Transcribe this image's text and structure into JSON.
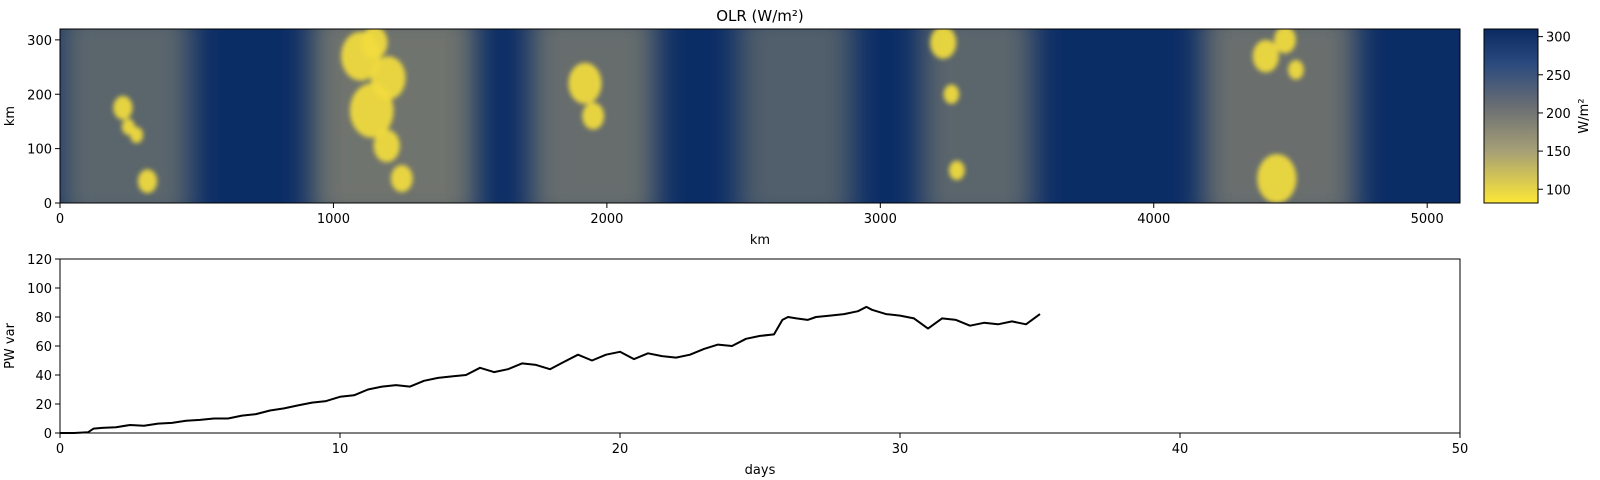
{
  "chart_data": [
    {
      "type": "heatmap",
      "title": "OLR (W/m²)",
      "xlabel": "km",
      "ylabel": "km",
      "xlim": [
        0,
        5120
      ],
      "ylim": [
        0,
        320
      ],
      "xticks": [
        0,
        1000,
        2000,
        3000,
        4000,
        5000
      ],
      "yticks": [
        0,
        100,
        200,
        300
      ],
      "colorbar": {
        "label": "W/m²",
        "range": [
          82,
          310
        ],
        "ticks": [
          100,
          150,
          200,
          250,
          300
        ],
        "colormap": [
          "#fde737",
          "#a59f76",
          "#6b6f73",
          "#2b4a7e",
          "#0a2a62"
        ]
      },
      "convective_bands": [
        {
          "x_range": [
            0,
            480
          ],
          "intensity": 0.55
        },
        {
          "x_range": [
            920,
            1520
          ],
          "intensity": 0.9
        },
        {
          "x_range": [
            1720,
            2180
          ],
          "intensity": 0.75
        },
        {
          "x_range": [
            2480,
            2900
          ],
          "intensity": 0.4
        },
        {
          "x_range": [
            3150,
            3560
          ],
          "intensity": 0.55
        },
        {
          "x_range": [
            4180,
            4740
          ],
          "intensity": 0.8
        }
      ],
      "cold_cloud_cores_km": [
        [
          230,
          175,
          22
        ],
        [
          250,
          140,
          15
        ],
        [
          280,
          125,
          15
        ],
        [
          320,
          40,
          22
        ],
        [
          1100,
          270,
          45
        ],
        [
          1140,
          170,
          50
        ],
        [
          1200,
          230,
          40
        ],
        [
          1150,
          295,
          30
        ],
        [
          1195,
          105,
          30
        ],
        [
          1250,
          45,
          25
        ],
        [
          1920,
          220,
          38
        ],
        [
          1950,
          160,
          25
        ],
        [
          3230,
          295,
          30
        ],
        [
          3260,
          200,
          18
        ],
        [
          3280,
          60,
          18
        ],
        [
          4410,
          270,
          30
        ],
        [
          4480,
          300,
          25
        ],
        [
          4520,
          245,
          18
        ],
        [
          4450,
          45,
          45
        ]
      ]
    },
    {
      "type": "line",
      "title": "",
      "xlabel": "days",
      "ylabel": "PW var",
      "xlim": [
        0,
        50
      ],
      "ylim": [
        0,
        120
      ],
      "xticks": [
        0,
        10,
        20,
        30,
        40,
        50
      ],
      "yticks": [
        0,
        20,
        40,
        60,
        80,
        100,
        120
      ],
      "series": [
        {
          "color": "#000000",
          "x": [
            0,
            0.5,
            1,
            1.2,
            1.5,
            2,
            2.5,
            3,
            3.5,
            4,
            4.5,
            5,
            5.5,
            6,
            6.5,
            7,
            7.5,
            8,
            8.5,
            9,
            9.5,
            10,
            10.5,
            11,
            11.5,
            12,
            12.5,
            13,
            13.5,
            14,
            14.5,
            15,
            15.5,
            16,
            16.5,
            17,
            17.5,
            18,
            18.5,
            19,
            19.5,
            20,
            20.5,
            21,
            21.5,
            22,
            22.5,
            23,
            23.5,
            24,
            24.5,
            25,
            25.5,
            25.8,
            26,
            26.3,
            26.7,
            27,
            27.5,
            28,
            28.5,
            28.8,
            29,
            29.5,
            30,
            30.5,
            31,
            31.5,
            32,
            32.5,
            33,
            33.5,
            34,
            34.5,
            35
          ],
          "y": [
            0,
            0,
            0.5,
            3,
            3.5,
            4,
            5.5,
            5,
            6.5,
            7,
            8.5,
            9,
            10,
            10,
            12,
            13,
            15.5,
            17,
            19,
            21,
            22,
            25,
            26,
            30,
            32,
            33,
            32,
            36,
            38,
            39,
            40,
            45,
            42,
            44,
            48,
            47,
            44,
            49,
            54,
            50,
            54,
            56,
            51,
            55,
            53,
            52,
            54,
            58,
            61,
            60,
            65,
            67,
            68,
            78,
            80,
            79,
            78,
            80,
            81,
            82,
            84,
            87,
            85,
            82,
            81,
            79,
            72,
            79,
            78,
            74,
            76,
            75,
            77,
            75,
            82
          ]
        }
      ]
    }
  ]
}
